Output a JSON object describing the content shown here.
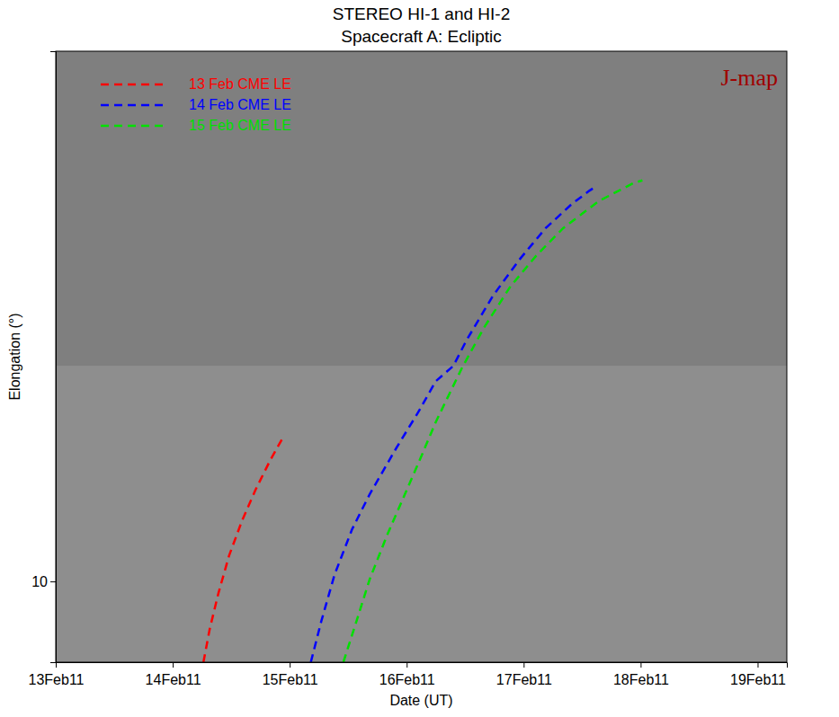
{
  "chart_data": {
    "type": "line",
    "title": "STEREO HI-1 and HI-2",
    "subtitle": "Spacecraft A: Ecliptic",
    "x_label": "Date (UT)",
    "y_label": "Elongation (°)",
    "annotations": [
      "J-map"
    ],
    "log": "y",
    "grid": false,
    "legend": "upper left",
    "xlim": [
      "2011-02-13 00:00",
      "2011-02-19 06:00"
    ],
    "xticks": [
      {
        "value": "2011-02-13 00:00",
        "label": "13Feb11"
      },
      {
        "value": "2011-02-14 00:00",
        "label": "14Feb11"
      },
      {
        "value": "2011-02-15 00:00",
        "label": "15Feb11"
      },
      {
        "value": "2011-02-16 00:00",
        "label": "16Feb11"
      },
      {
        "value": "2011-02-17 00:00",
        "label": "17Feb11"
      },
      {
        "value": "2011-02-18 00:00",
        "label": "18Feb11"
      },
      {
        "value": "2011-02-19 00:00",
        "label": "19Feb11"
      }
    ],
    "ylim": [
      7,
      104
    ],
    "yticks": [
      10
    ],
    "series": [
      {
        "name": "13 Feb CME LE",
        "color": "#ff0000",
        "line_style": "dashed",
        "x": [
          "2011-02-14 06:18",
          "2011-02-14 07:35",
          "2011-02-14 09:23",
          "2011-02-14 11:33",
          "2011-02-14 14:15",
          "2011-02-14 17:00",
          "2011-02-14 20:02",
          "2011-02-14 22:55"
        ],
        "values": [
          7.0,
          8.1,
          9.5,
          11.2,
          13.1,
          15.0,
          17.1,
          19.1
        ]
      },
      {
        "name": "14 Feb CME LE",
        "color": "#0000ff",
        "line_style": "dashed",
        "x": [
          "2011-02-15 04:20",
          "2011-02-15 06:30",
          "2011-02-15 09:12",
          "2011-02-15 12:49",
          "2011-02-15 16:25",
          "2011-02-15 21:50",
          "2011-02-16 02:21",
          "2011-02-16 05:57",
          "2011-02-16 09:34",
          "2011-02-16 12:16",
          "2011-02-16 17:41",
          "2011-02-16 23:06",
          "2011-02-17 04:31",
          "2011-02-17 09:55",
          "2011-02-17 13:32",
          "2011-02-17 14:26"
        ],
        "values": [
          7.0,
          8.4,
          10.3,
          12.6,
          14.7,
          18.0,
          21.1,
          24.2,
          25.9,
          29.0,
          35.3,
          41.4,
          47.6,
          53.0,
          56.2,
          56.9
        ]
      },
      {
        "name": "15 Feb CME LE",
        "color": "#00e000",
        "line_style": "dashed",
        "x": [
          "2011-02-15 11:01",
          "2011-02-15 13:43",
          "2011-02-15 16:25",
          "2011-02-15 20:02",
          "2011-02-15 23:38",
          "2011-02-16 03:15",
          "2011-02-16 05:57",
          "2011-02-16 08:40",
          "2011-02-16 11:22",
          "2011-02-16 15:53",
          "2011-02-16 21:17",
          "2011-02-17 02:43",
          "2011-02-17 08:07",
          "2011-02-17 15:20",
          "2011-02-17 22:34",
          "2011-02-18 00:22"
        ],
        "values": [
          7.0,
          8.4,
          10.1,
          12.3,
          14.7,
          17.6,
          20.2,
          22.8,
          25.7,
          30.7,
          36.8,
          42.3,
          47.6,
          53.6,
          58.1,
          58.8
        ]
      }
    ]
  }
}
